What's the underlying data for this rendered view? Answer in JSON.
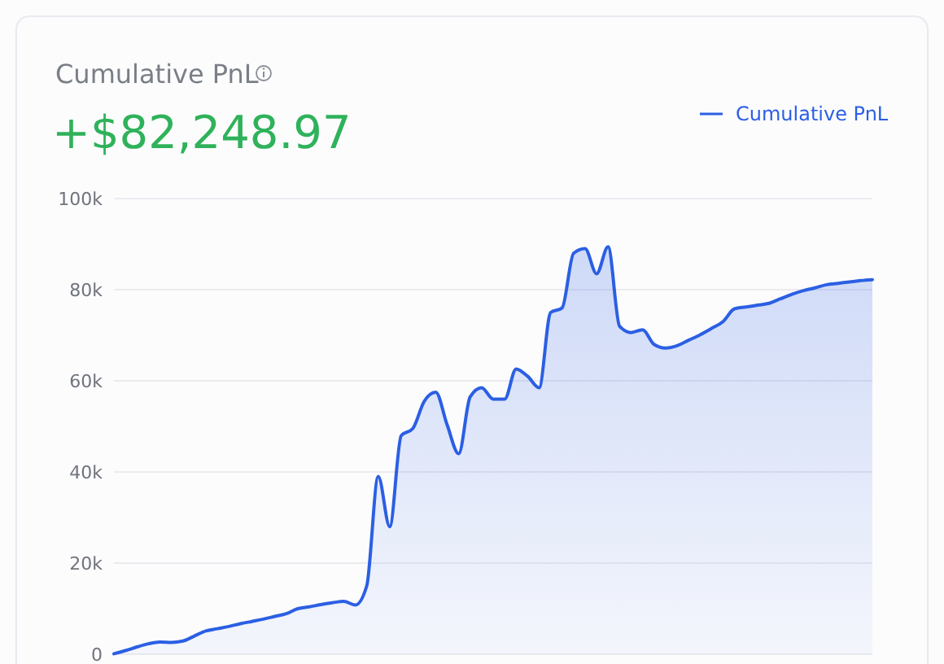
{
  "chart_data": {
    "type": "area",
    "title": "Cumulative PnL",
    "subtitle": "+$82,248.97",
    "categories": [
      null,
      null,
      null,
      null,
      null,
      null,
      null,
      null,
      null,
      null,
      null,
      null,
      null,
      null,
      null,
      null,
      null,
      null,
      null,
      null,
      null,
      null,
      null,
      null,
      null,
      null,
      null,
      null,
      null,
      null,
      null,
      null,
      null,
      null,
      null,
      null,
      null,
      null,
      null,
      null,
      null,
      null,
      null,
      null,
      null,
      null,
      null,
      null,
      null,
      null,
      null,
      null,
      null,
      null,
      null,
      null,
      null,
      null,
      null,
      null,
      null,
      null,
      null,
      null,
      null,
      null,
      null
    ],
    "series": [
      {
        "name": "Cumulative PnL",
        "color": "#2b5fe3",
        "values": [
          100,
          800,
          1600,
          2300,
          2700,
          2600,
          2900,
          4000,
          5100,
          5600,
          6100,
          6700,
          7200,
          7700,
          8300,
          8900,
          10000,
          10400,
          10900,
          11300,
          11600,
          10800,
          15000,
          39000,
          28000,
          48000,
          49500,
          55500,
          57500,
          50300,
          44000,
          56500,
          58500,
          56000,
          56000,
          62600,
          61000,
          58500,
          75000,
          76000,
          88000,
          89000,
          83500,
          89400,
          72000,
          70600,
          71200,
          68000,
          67200,
          67700,
          68900,
          70100,
          71500,
          73000,
          75800,
          76200,
          76600,
          77000,
          78000,
          79000,
          79800,
          80400,
          81100,
          81400,
          81700,
          82000,
          82200
        ]
      }
    ],
    "ylim": [
      0,
      100000
    ],
    "yticks": [
      {
        "value": 0,
        "label": "0"
      },
      {
        "value": 20000,
        "label": "20k"
      },
      {
        "value": 40000,
        "label": "40k"
      },
      {
        "value": 60000,
        "label": "60k"
      },
      {
        "value": 80000,
        "label": "80k"
      },
      {
        "value": 100000,
        "label": "100k"
      }
    ],
    "grid": "y",
    "legend": "top right",
    "tick_labels": "y"
  }
}
